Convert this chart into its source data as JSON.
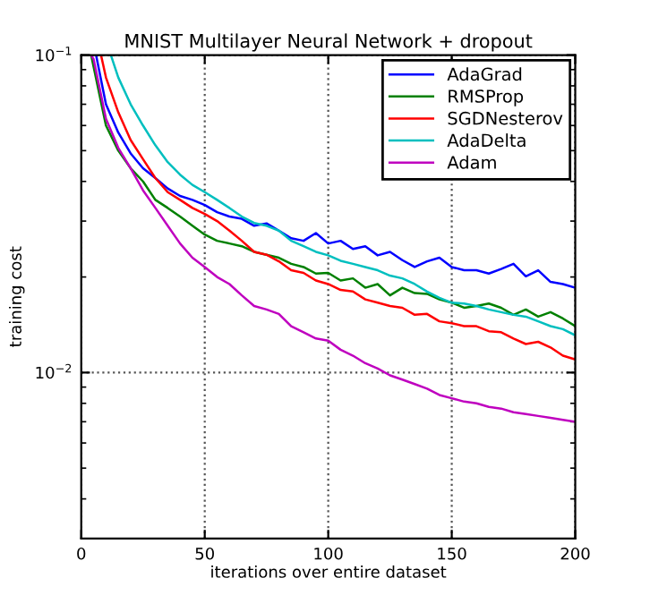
{
  "chart_data": {
    "type": "line",
    "title": "MNIST Multilayer Neural Network + dropout",
    "xlabel": "iterations over entire dataset",
    "ylabel": "training cost",
    "log": "y",
    "xlim": [
      0,
      200
    ],
    "ylim": [
      0.003,
      0.1
    ],
    "xticks": [
      0,
      50,
      100,
      150,
      200
    ],
    "yticks": [
      {
        "value": 0.1,
        "label": "10$^{−1}$"
      },
      {
        "value": 0.01,
        "label": "10$^{−2}$"
      }
    ],
    "grid": true,
    "line_style": "solid",
    "legend": "top right",
    "series": [
      {
        "name": "AdaGrad",
        "color": "#0000ff",
        "x": [
          6,
          10,
          15,
          20,
          25,
          30,
          35,
          40,
          45,
          50,
          55,
          60,
          65,
          70,
          75,
          80,
          85,
          90,
          95,
          100,
          105,
          110,
          115,
          120,
          125,
          130,
          135,
          140,
          145,
          150,
          155,
          160,
          165,
          170,
          175,
          180,
          185,
          190,
          195,
          200
        ],
        "values": [
          0.1,
          0.07,
          0.057,
          0.049,
          0.044,
          0.041,
          0.038,
          0.036,
          0.035,
          0.0337,
          0.032,
          0.031,
          0.0305,
          0.029,
          0.0295,
          0.028,
          0.0265,
          0.026,
          0.0275,
          0.0255,
          0.026,
          0.0245,
          0.025,
          0.0234,
          0.024,
          0.0226,
          0.0215,
          0.0224,
          0.023,
          0.0215,
          0.021,
          0.021,
          0.0205,
          0.0212,
          0.022,
          0.0201,
          0.021,
          0.0193,
          0.019,
          0.0185
        ]
      },
      {
        "name": "RMSProp",
        "color": "#008000",
        "x": [
          4,
          10,
          15,
          20,
          25,
          30,
          35,
          40,
          45,
          50,
          55,
          60,
          65,
          70,
          75,
          80,
          85,
          90,
          95,
          100,
          105,
          110,
          115,
          120,
          125,
          130,
          135,
          140,
          145,
          150,
          155,
          160,
          165,
          170,
          175,
          180,
          185,
          190,
          195,
          200
        ],
        "values": [
          0.1,
          0.06,
          0.05,
          0.044,
          0.04,
          0.035,
          0.033,
          0.031,
          0.029,
          0.0272,
          0.026,
          0.0255,
          0.025,
          0.024,
          0.0235,
          0.023,
          0.022,
          0.0215,
          0.0205,
          0.0206,
          0.0195,
          0.0198,
          0.0185,
          0.019,
          0.0175,
          0.0185,
          0.0178,
          0.0177,
          0.017,
          0.0166,
          0.016,
          0.0162,
          0.0165,
          0.016,
          0.0152,
          0.0158,
          0.015,
          0.0155,
          0.0148,
          0.014
        ]
      },
      {
        "name": "SGDNesterov",
        "color": "#ff0000",
        "x": [
          8,
          10,
          15,
          20,
          25,
          30,
          35,
          40,
          45,
          50,
          55,
          60,
          65,
          70,
          75,
          80,
          85,
          90,
          95,
          100,
          105,
          110,
          115,
          120,
          125,
          130,
          135,
          140,
          145,
          150,
          155,
          160,
          165,
          170,
          175,
          180,
          185,
          190,
          195,
          200
        ],
        "values": [
          0.1,
          0.085,
          0.066,
          0.054,
          0.047,
          0.041,
          0.037,
          0.035,
          0.033,
          0.0316,
          0.03,
          0.028,
          0.026,
          0.024,
          0.0235,
          0.0224,
          0.021,
          0.0206,
          0.0195,
          0.019,
          0.0182,
          0.018,
          0.017,
          0.0166,
          0.0162,
          0.016,
          0.0152,
          0.0153,
          0.0145,
          0.0143,
          0.014,
          0.014,
          0.0135,
          0.0134,
          0.0128,
          0.0123,
          0.0125,
          0.012,
          0.0113,
          0.011
        ]
      },
      {
        "name": "AdaDelta",
        "color": "#00bfbf",
        "x": [
          12,
          15,
          20,
          25,
          30,
          35,
          40,
          45,
          50,
          55,
          60,
          65,
          70,
          75,
          80,
          85,
          90,
          95,
          100,
          105,
          110,
          115,
          120,
          125,
          130,
          135,
          140,
          145,
          150,
          155,
          160,
          165,
          170,
          175,
          180,
          185,
          190,
          195,
          200
        ],
        "values": [
          0.1,
          0.085,
          0.07,
          0.06,
          0.052,
          0.046,
          0.042,
          0.039,
          0.037,
          0.035,
          0.033,
          0.031,
          0.0296,
          0.029,
          0.028,
          0.026,
          0.025,
          0.024,
          0.0234,
          0.0225,
          0.022,
          0.0215,
          0.021,
          0.0202,
          0.0198,
          0.019,
          0.018,
          0.0172,
          0.0166,
          0.0165,
          0.0162,
          0.0158,
          0.0155,
          0.0152,
          0.015,
          0.0145,
          0.014,
          0.0137,
          0.0131
        ]
      },
      {
        "name": "Adam",
        "color": "#bf00bf",
        "x": [
          4,
          5,
          10,
          15,
          20,
          25,
          30,
          35,
          40,
          45,
          50,
          55,
          60,
          65,
          70,
          75,
          80,
          85,
          90,
          95,
          100,
          105,
          110,
          115,
          120,
          125,
          130,
          135,
          140,
          145,
          150,
          155,
          160,
          165,
          170,
          175,
          180,
          185,
          190,
          195,
          200
        ],
        "values": [
          0.1,
          0.097,
          0.063,
          0.051,
          0.044,
          0.0375,
          0.033,
          0.029,
          0.0255,
          0.023,
          0.0215,
          0.02,
          0.019,
          0.0175,
          0.0162,
          0.0158,
          0.0153,
          0.014,
          0.0134,
          0.0128,
          0.0126,
          0.0118,
          0.0113,
          0.0107,
          0.0103,
          0.0098,
          0.0095,
          0.0092,
          0.0089,
          0.0085,
          0.0083,
          0.0081,
          0.008,
          0.0078,
          0.0077,
          0.0075,
          0.0074,
          0.0073,
          0.0072,
          0.0071,
          0.007
        ]
      }
    ]
  }
}
